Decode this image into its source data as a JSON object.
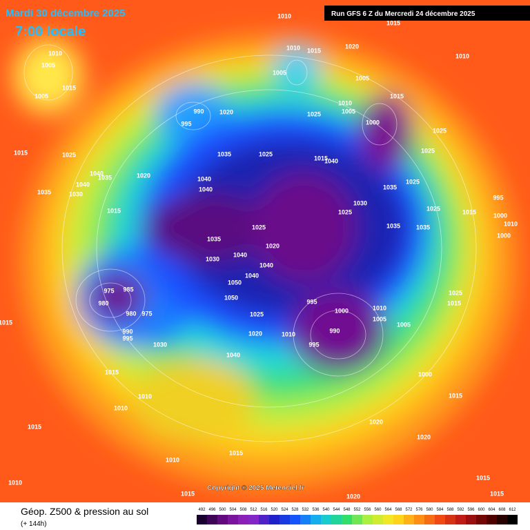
{
  "header": {
    "date": "Mardi 30 décembre 2025",
    "time": "7:00 locale",
    "run": "Run GFS 6 Z du Mercredi 24 décembre 2025"
  },
  "map": {
    "pressure_labels": [
      "1010",
      "1015",
      "1020",
      "1010",
      "1015",
      "1010",
      "1005",
      "1015",
      "1005",
      "1010",
      "1005",
      "1005",
      "1015",
      "1010",
      "1005",
      "990",
      "1020",
      "995",
      "1025",
      "1000",
      "1025",
      "1015",
      "1025",
      "1035",
      "1025",
      "1025",
      "1040",
      "1035",
      "1020",
      "1040",
      "1040",
      "1015",
      "1040",
      "1025",
      "1035",
      "1040",
      "1035",
      "1030",
      "1030",
      "995",
      "1025",
      "1025",
      "1015",
      "1015",
      "1000",
      "1010",
      "1035",
      "1035",
      "1025",
      "1000",
      "1035",
      "1020",
      "1040",
      "1030",
      "1040",
      "1040",
      "1050",
      "975",
      "985",
      "980",
      "995",
      "1050",
      "1025",
      "1010",
      "1000",
      "980",
      "975",
      "1025",
      "1015",
      "1005",
      "1005",
      "990",
      "1020",
      "1010",
      "990",
      "995",
      "1015",
      "1030",
      "995",
      "1040",
      "1000",
      "1015",
      "1010",
      "1010",
      "1015",
      "1015",
      "1020",
      "1020",
      "1015",
      "1010",
      "1010",
      "1015",
      "1015",
      "1020",
      "1015"
    ]
  },
  "copyright": "Copyright © 2025 Meteociel.fr",
  "legend": {
    "title": "Géop. Z500 & pression au sol",
    "lead": "(+ 144h)",
    "scale": [
      492,
      496,
      500,
      504,
      508,
      512,
      516,
      520,
      524,
      528,
      532,
      536,
      540,
      544,
      548,
      552,
      556,
      560,
      564,
      568,
      572,
      576,
      580,
      584,
      588,
      592,
      596,
      600,
      604,
      608,
      612
    ]
  }
}
